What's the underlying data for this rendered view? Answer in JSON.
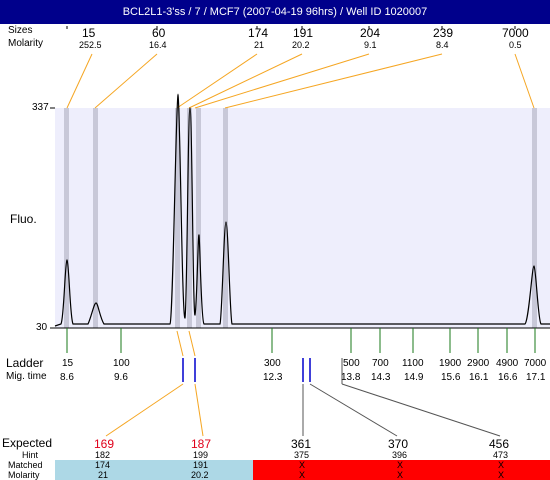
{
  "title": "BCL2L1-3'ss / 7 / MCF7 (2007-04-19 96hrs) / Well ID 1020007",
  "header": {
    "sizes_label": "Sizes",
    "molarity_label": "Molarity",
    "peaks": [
      {
        "size": "15",
        "molarity": "252.5"
      },
      {
        "size": "60",
        "molarity": "16.4"
      },
      {
        "size": "174",
        "molarity": "21"
      },
      {
        "size": "191",
        "molarity": "20.2"
      },
      {
        "size": "204",
        "molarity": "9.1"
      },
      {
        "size": "239",
        "molarity": "8.4"
      },
      {
        "size": "7000",
        "molarity": "0.5"
      }
    ]
  },
  "plot": {
    "y_top": "337",
    "y_bottom": "30",
    "y_axis_label": "Fluo."
  },
  "ladder": {
    "label": "Ladder",
    "mig_label": "Mig. time",
    "bands": [
      {
        "size": "15",
        "mig": "8.6"
      },
      {
        "size": "100",
        "mig": "9.6"
      },
      {
        "size": "300",
        "mig": "12.3"
      },
      {
        "size": "500",
        "mig": "13.8"
      },
      {
        "size": "700",
        "mig": "14.3"
      },
      {
        "size": "1100",
        "mig": "14.9"
      },
      {
        "size": "1900",
        "mig": "15.6"
      },
      {
        "size": "2900",
        "mig": "16.1"
      },
      {
        "size": "4900",
        "mig": "16.6"
      },
      {
        "size": "7000",
        "mig": "17.1"
      }
    ]
  },
  "expected": {
    "expected_label": "Expected",
    "hint_label": "Hint",
    "matched_label": "Matched",
    "molarity_label": "Molarity",
    "columns": [
      {
        "expected": "169",
        "hint": "182",
        "matched": "174",
        "molarity": "21",
        "found": true
      },
      {
        "expected": "187",
        "hint": "199",
        "matched": "191",
        "molarity": "20.2",
        "found": true
      },
      {
        "expected": "361",
        "hint": "375",
        "matched": "X",
        "molarity": "X",
        "found": false
      },
      {
        "expected": "370",
        "hint": "396",
        "matched": "X",
        "molarity": "X",
        "found": false
      },
      {
        "expected": "456",
        "hint": "473",
        "matched": "X",
        "molarity": "X",
        "found": false
      }
    ]
  },
  "colors": {
    "title_bg": "#00008b",
    "plot_bg": "#eeeefc",
    "peak_band": "#c8c8d8",
    "connector_orange": "#f5a623",
    "ladder_tick": "#1a7a1a",
    "matched_bg": "#add8e6",
    "unmatched_bg": "#ff0000",
    "expected_red": "#e0001a",
    "mark_blue": "#0000cc"
  }
}
